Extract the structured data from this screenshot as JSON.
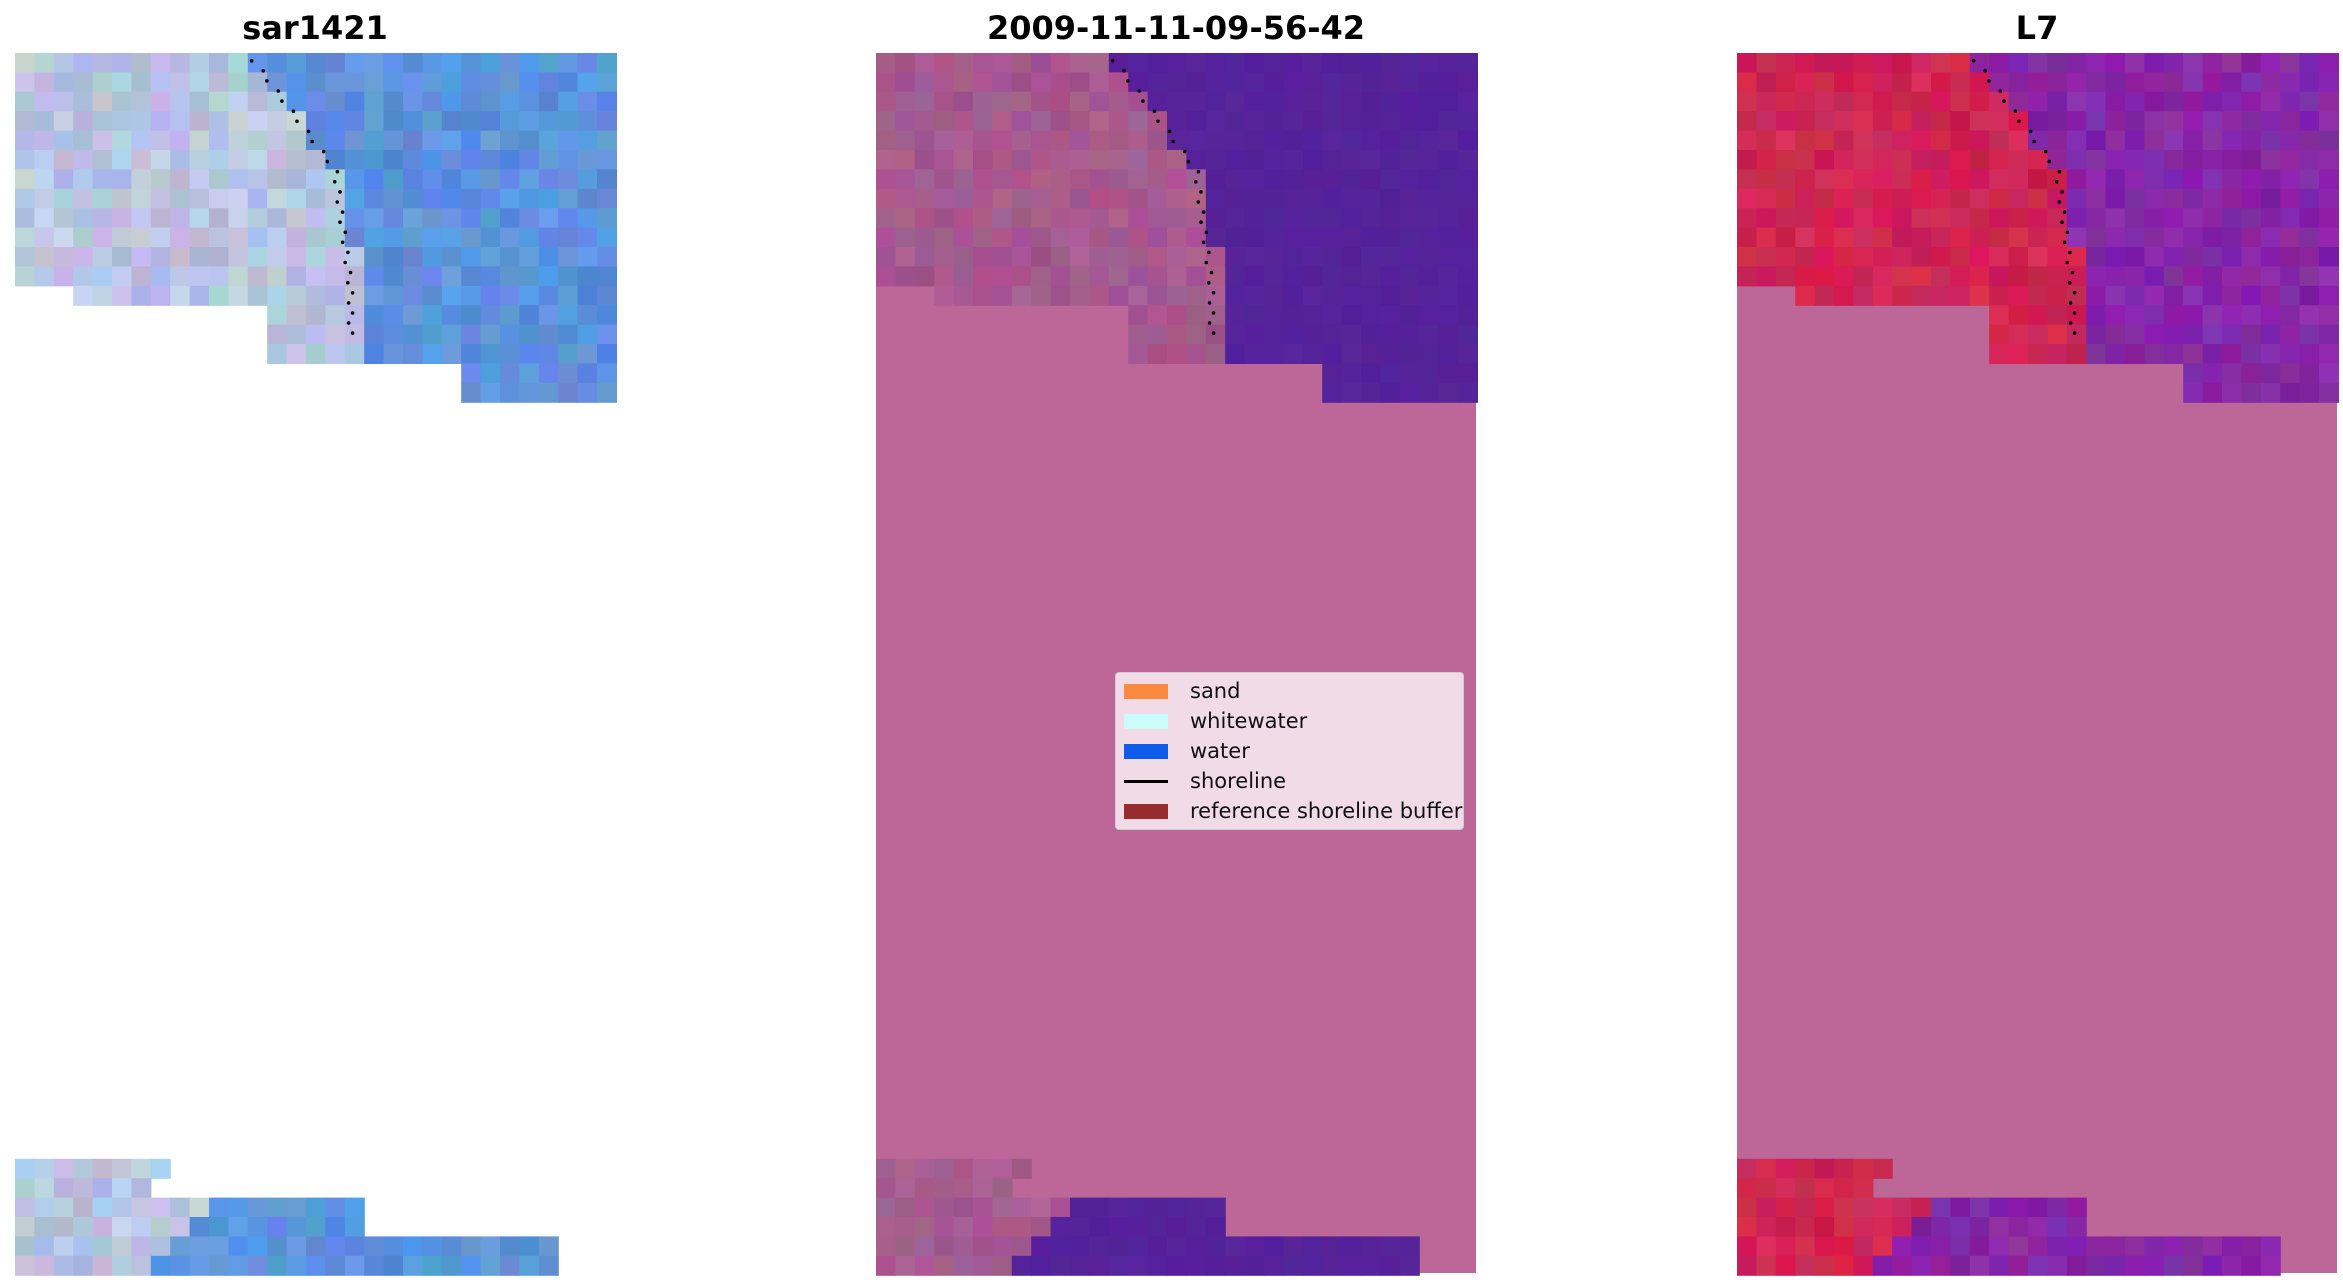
{
  "panels": [
    {
      "id": "a",
      "title": "sar1421"
    },
    {
      "id": "b",
      "title": "2009-11-11-09-56-42"
    },
    {
      "id": "c",
      "title": "L7"
    }
  ],
  "legend": {
    "items": [
      {
        "label": "sand",
        "color": "#fb8a40"
      },
      {
        "label": "whitewater",
        "color": "#ccfbfb"
      },
      {
        "label": "water",
        "color": "#0f5ceb"
      },
      {
        "label": "shoreline",
        "color": "#000000"
      },
      {
        "label": "reference shoreline buffer",
        "color": "#962c2c"
      }
    ]
  },
  "colors": {
    "buffer_pink": "#bc6797",
    "sea_purple": "#55229a",
    "land_red": "#cf2453",
    "sea_violet": "#8627a6",
    "rgb_water": "#5d92dd",
    "rgb_land": "#b9c5e0"
  }
}
